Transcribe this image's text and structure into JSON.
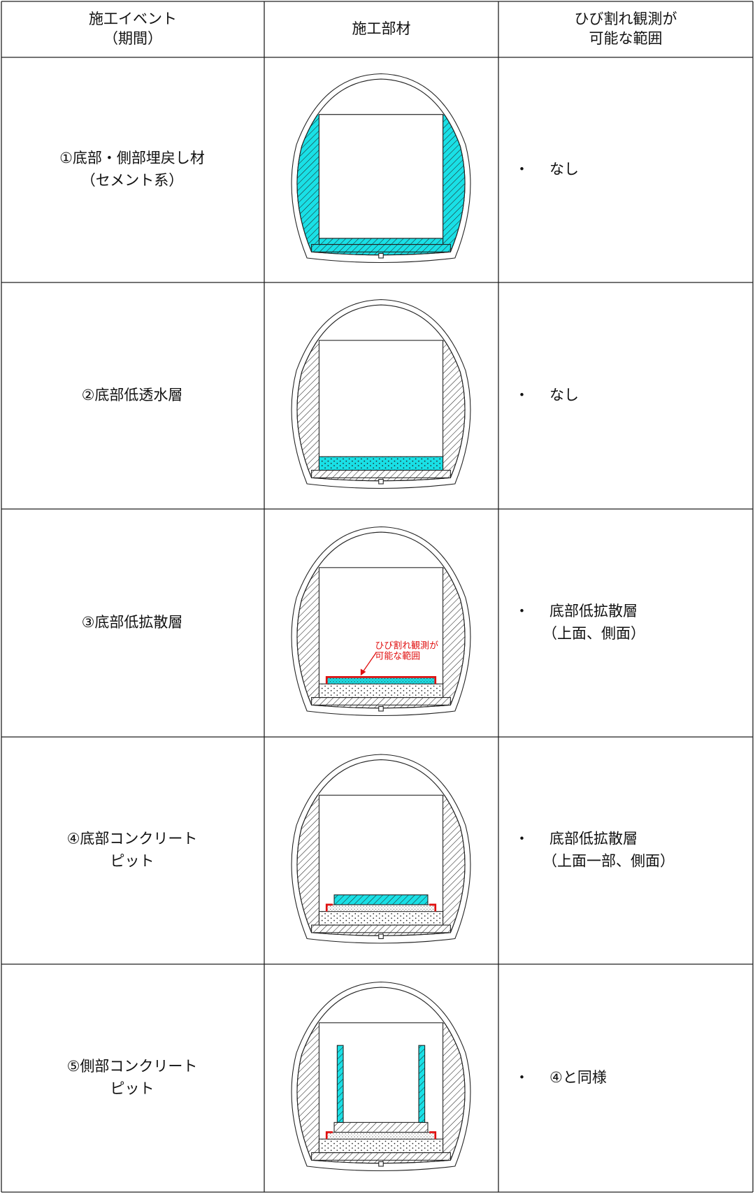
{
  "table": {
    "headers": [
      [
        "施工イベント",
        "（期間）"
      ],
      [
        "施工部材"
      ],
      [
        "ひび割れ観測が",
        "可能な範囲"
      ]
    ],
    "bullet": "・",
    "rows": [
      {
        "event": [
          "①底部・側部埋戻し材",
          "（セメント系）"
        ],
        "range": [
          "なし"
        ]
      },
      {
        "event": [
          "②底部低透水層"
        ],
        "range": [
          "なし"
        ]
      },
      {
        "event": [
          "③底部低拡散層"
        ],
        "range": [
          "底部低拡散層",
          "（上面、側面）"
        ]
      },
      {
        "event": [
          "④底部コンクリート",
          "ピット"
        ],
        "range": [
          "底部低拡散層",
          "（上面一部、側面）"
        ]
      },
      {
        "event": [
          "⑤側部コンクリート",
          "ピット"
        ],
        "range": [
          "④と同様"
        ]
      }
    ],
    "annotation": [
      "ひび割れ観測が",
      "可能な範囲"
    ]
  }
}
